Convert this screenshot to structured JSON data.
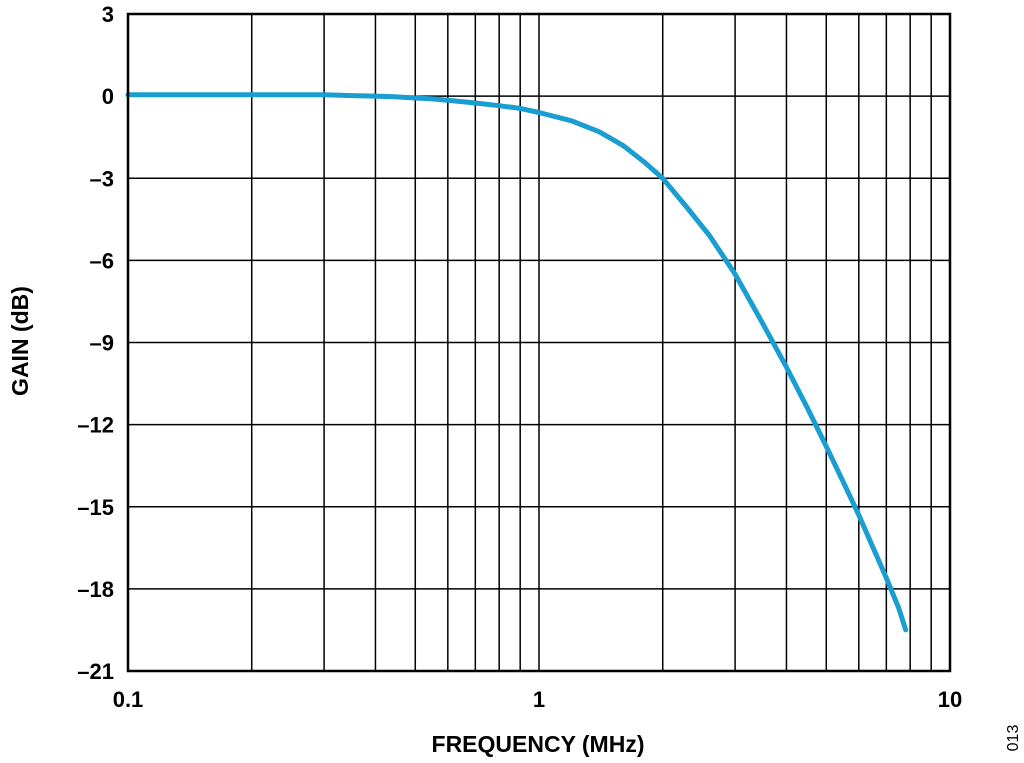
{
  "chart_data": {
    "type": "line",
    "title": "",
    "xlabel": "FREQUENCY (MHz)",
    "ylabel": "GAIN (dB)",
    "x_scale": "log",
    "xlim": [
      0.1,
      10
    ],
    "ylim": [
      -21,
      3
    ],
    "grid": true,
    "x_ticks": [
      0.1,
      1,
      10
    ],
    "x_tick_labels": [
      "0.1",
      "1",
      "10"
    ],
    "y_ticks": [
      3,
      0,
      -3,
      -6,
      -9,
      -12,
      -15,
      -18,
      -21
    ],
    "y_tick_labels": [
      "3",
      "0",
      "–3",
      "–6",
      "–9",
      "–12",
      "–15",
      "–18",
      "–21"
    ],
    "series": [
      {
        "color": "#1a9dd0",
        "x": [
          0.1,
          0.15,
          0.2,
          0.25,
          0.3,
          0.35,
          0.4,
          0.45,
          0.5,
          0.55,
          0.6,
          0.7,
          0.8,
          0.9,
          1.0,
          1.2,
          1.4,
          1.6,
          1.8,
          2.0,
          2.3,
          2.6,
          3.0,
          3.5,
          4.0,
          4.5,
          5.0,
          5.5,
          6.0,
          6.5,
          7.0,
          7.5,
          7.8
        ],
        "values": [
          0.05,
          0.05,
          0.05,
          0.05,
          0.05,
          0.02,
          0.0,
          -0.03,
          -0.07,
          -0.1,
          -0.15,
          -0.25,
          -0.35,
          -0.45,
          -0.6,
          -0.9,
          -1.3,
          -1.8,
          -2.4,
          -3.0,
          -4.1,
          -5.1,
          -6.5,
          -8.3,
          -9.9,
          -11.4,
          -12.8,
          -14.1,
          -15.3,
          -16.5,
          -17.6,
          -18.7,
          -19.5
        ]
      }
    ]
  },
  "figure_code": "013"
}
